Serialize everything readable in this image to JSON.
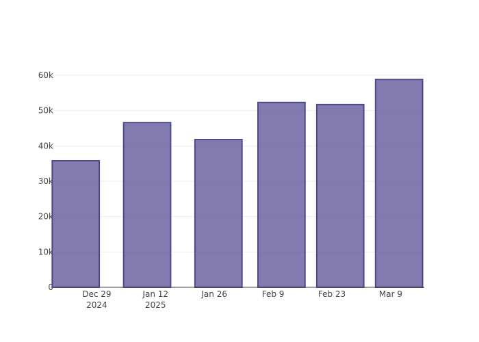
{
  "chart_data": {
    "type": "bar",
    "x": [
      "2024-12-24",
      "2025-01-10",
      "2025-01-27",
      "2025-02-11",
      "2025-02-25",
      "2025-03-11"
    ],
    "values": [
      35800,
      46600,
      41800,
      52300,
      51700,
      58800
    ],
    "color": "rgba(72,61,139,0.68)",
    "edgecolor": "#4a4a88",
    "xlim": [
      "2024-12-19",
      "2025-03-17"
    ],
    "xticks": [
      {
        "value": "2024-12-29",
        "label": "Dec 29\n2024"
      },
      {
        "value": "2025-01-12",
        "label": "Jan 12\n2025"
      },
      {
        "value": "2025-01-26",
        "label": "Jan 26"
      },
      {
        "value": "2025-02-09",
        "label": "Feb 9"
      },
      {
        "value": "2025-02-23",
        "label": "Feb 23"
      },
      {
        "value": "2025-03-09",
        "label": "Mar 9"
      }
    ],
    "ylim": [
      0,
      61935
    ],
    "yticks": [
      0,
      {
        "value": 10000,
        "label": "10k"
      },
      {
        "value": 20000,
        "label": "20k"
      },
      {
        "value": 30000,
        "label": "30k"
      },
      {
        "value": 40000,
        "label": "40k"
      },
      {
        "value": 50000,
        "label": "50k"
      },
      {
        "value": 60000,
        "label": "60k"
      }
    ],
    "grid": true
  }
}
